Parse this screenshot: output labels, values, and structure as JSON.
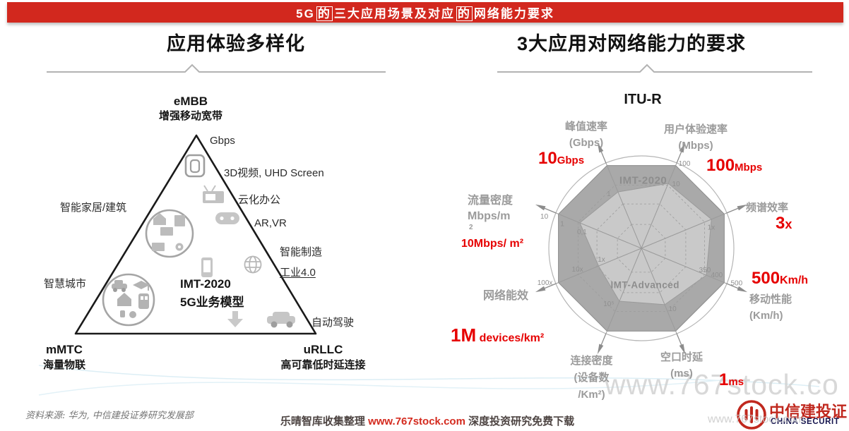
{
  "banner": {
    "title_parts": [
      {
        "text": "5G",
        "boxed": false
      },
      {
        "text": "的",
        "boxed": true
      },
      {
        "text": "三大应用场景及对应",
        "boxed": false
      },
      {
        "text": "的",
        "boxed": true
      },
      {
        "text": "网络能力要求",
        "boxed": false
      }
    ]
  },
  "colors": {
    "banner_red": "#d2281e",
    "accent_red": "#e60000",
    "radar_outer_fill": "#a9a9a9",
    "radar_inner_fill": "#c9c9c9",
    "logo_red": "#c0281e"
  },
  "left_panel": {
    "title": "应用体验多样化",
    "apex": {
      "name": "eMBB",
      "desc": "增强移动宽带"
    },
    "bottom_left": {
      "name": "mMTC",
      "desc": "海量物联"
    },
    "bottom_right": {
      "name": "uRLLC",
      "desc": "高可靠低时延连接"
    },
    "center": {
      "line1": "IMT-2020",
      "line2": "5G业务模型"
    },
    "labels": {
      "gbps": "Gbps",
      "video": "3D视频, UHD Screen",
      "cloud": "云化办公",
      "arvr": "AR,VR",
      "manufacturing": "智能制造",
      "industry": "工业4.0",
      "smart_home": "智能家居/建筑",
      "smart_city": "智慧城市",
      "auto_drive": "自动驾驶"
    }
  },
  "right_panel": {
    "title": "3大应用对网络能力的要求"
  },
  "chart_data": {
    "type": "radar",
    "title": "ITU-R",
    "legend_position": "inside",
    "axes": [
      {
        "label": "峰值速率",
        "unit": "(Gbps)",
        "requirement_big": "10",
        "requirement_small": "Gbps",
        "ticks": [
          {
            "t": "1",
            "r": 0.66
          }
        ]
      },
      {
        "label": "用户体验速率",
        "unit": "(Mbps)",
        "requirement_big": "100",
        "requirement_small": "Mbps",
        "ticks": [
          {
            "t": "10",
            "r": 0.76
          },
          {
            "t": "100",
            "r": 1.0
          }
        ]
      },
      {
        "label": "频谱效率",
        "unit": "",
        "requirement_big": "3",
        "requirement_small": "x",
        "ticks": [
          {
            "t": "1x",
            "r": 0.85
          }
        ]
      },
      {
        "label": "移动性能",
        "unit": "(Km/h)",
        "requirement_big": "500",
        "requirement_small": "Km/h",
        "ticks": [
          {
            "t": "350",
            "r": 0.76
          },
          {
            "t": "400",
            "r": 0.9
          },
          {
            "t": "500",
            "r": 1.13
          }
        ]
      },
      {
        "label": "空口时延",
        "unit": "(ms)",
        "requirement_big": "1",
        "requirement_small": "ms",
        "ticks": [
          {
            "t": "10",
            "r": 0.66
          }
        ]
      },
      {
        "label": "连接密度",
        "unit": "(设备数",
        "unit2": "/Km²)",
        "requirement_big": "1M",
        "requirement_small": "devices/km²",
        "ticks": [
          {
            "t": "10⁵",
            "r": 0.62
          }
        ]
      },
      {
        "label": "网络能效",
        "unit": "",
        "requirement_big": "",
        "requirement_small": "",
        "ticks": [
          {
            "t": "1x",
            "r": 0.5
          },
          {
            "t": "10x",
            "r": 0.78
          },
          {
            "t": "100x",
            "r": 1.16
          }
        ]
      },
      {
        "label": "流量密度",
        "unit": "Mbps/m",
        "unit2": "2",
        "requirement_big": "",
        "requirement_small": "10Mbps/ m²",
        "ticks": [
          {
            "t": "0,1",
            "r": 0.72
          },
          {
            "t": "1",
            "r": 0.95
          },
          {
            "t": "10",
            "r": 1.16
          }
        ]
      }
    ],
    "series": [
      {
        "name": "IMT-2020",
        "values": [
          0.97,
          0.97,
          0.97,
          0.97,
          0.97,
          0.97,
          0.97,
          0.97
        ],
        "fill": "#a9a9a9"
      },
      {
        "name": "IMT-Advanced",
        "values": [
          0.66,
          0.76,
          0.82,
          0.76,
          0.66,
          0.62,
          0.5,
          0.72
        ],
        "fill": "#c9c9c9"
      }
    ],
    "series_labels": [
      {
        "name": "IMT-2020",
        "lx": 0.02,
        "ly": -0.7
      },
      {
        "name": "IMT-Advanced",
        "lx": 0.04,
        "ly": 0.43
      }
    ],
    "angles_deg": [
      112.5,
      67.5,
      22.5,
      -22.5,
      -67.5,
      -112.5,
      -157.5,
      157.5
    ],
    "grid_rings": [
      0.28,
      0.52,
      0.74
    ]
  },
  "footer": {
    "source": "资料来源: 华为, 中信建投证券研究发展部",
    "center_prefix": "乐晴智库收集整理 ",
    "center_url": "www.767stock.com",
    "center_suffix": " 深度投资研究免费下载",
    "logo_cn": "中信建投证",
    "logo_en": "CHINA SECURIT"
  },
  "watermark": {
    "big": "www.767stock.co",
    "small": "www.767stock.com"
  }
}
